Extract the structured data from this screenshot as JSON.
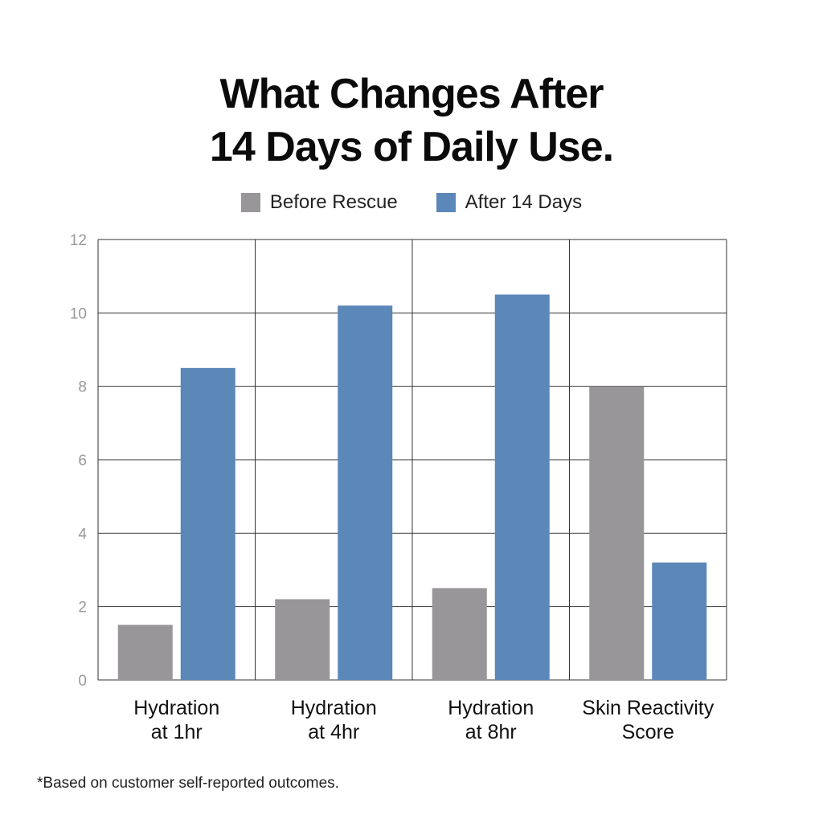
{
  "title_line1": "What Changes After",
  "title_line2": "14 Days of Daily Use.",
  "footnote": "*Based on customer self-reported outcomes.",
  "colors": {
    "before": "#99969a",
    "after": "#5b87b9",
    "grid": "#333333",
    "tick": "#999999"
  },
  "chart_data": {
    "type": "bar",
    "title": "What Changes After 14 Days of Daily Use.",
    "xlabel": "",
    "ylabel": "",
    "ylim": [
      0,
      12
    ],
    "yticks": [
      "0",
      "2",
      "4",
      "6",
      "8",
      "10",
      "12"
    ],
    "grid": true,
    "legend_position": "top-center",
    "categories": [
      [
        "Hydration",
        "at 1hr"
      ],
      [
        "Hydration",
        "at 4hr"
      ],
      [
        "Hydration",
        "at 8hr"
      ],
      [
        "Skin Reactivity",
        "Score"
      ]
    ],
    "series": [
      {
        "name": "Before Rescue",
        "values": [
          1.5,
          2.2,
          2.5,
          8.0
        ]
      },
      {
        "name": "After 14 Days",
        "values": [
          8.5,
          10.2,
          10.5,
          3.2
        ]
      }
    ]
  }
}
